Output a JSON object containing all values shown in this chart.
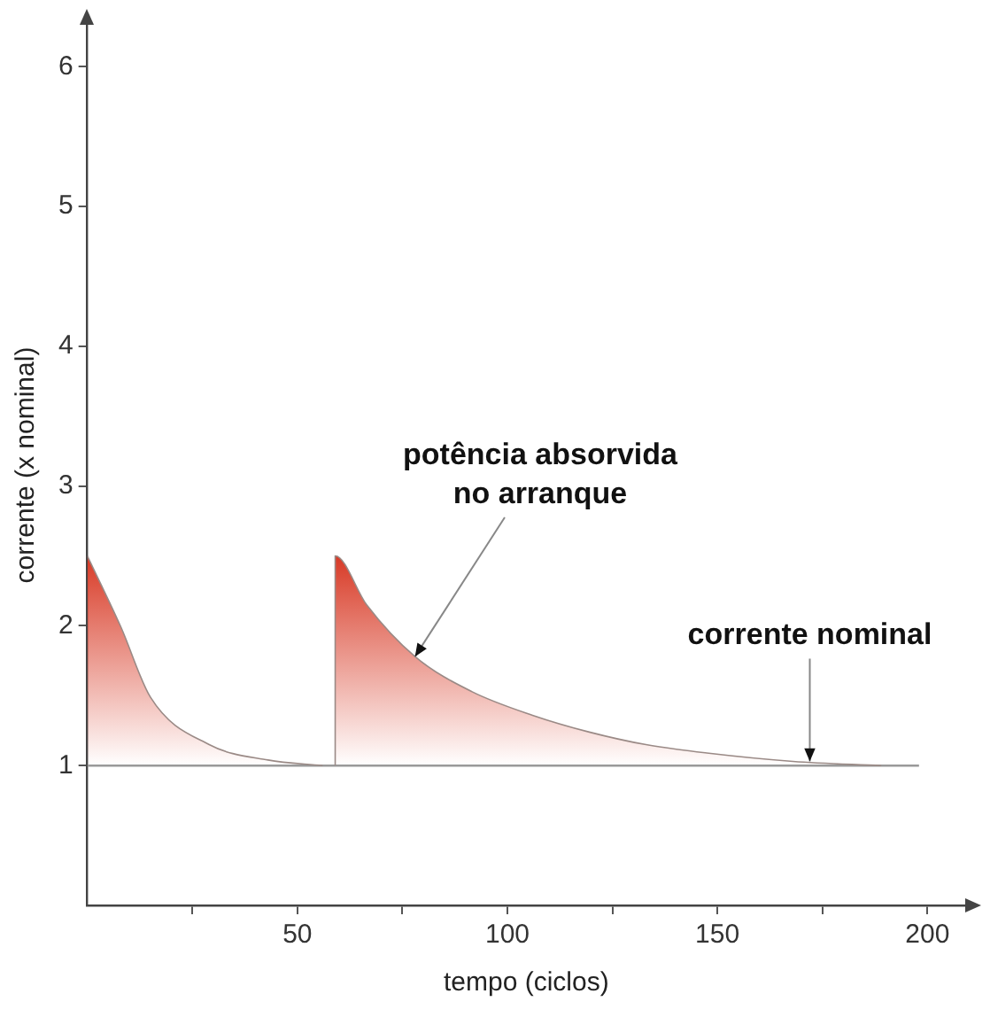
{
  "chart_data": {
    "type": "area",
    "xlabel": "tempo (ciclos)",
    "ylabel": "corrente (x nominal)",
    "series": [
      {
        "color": "#d83a26",
        "x": [
          0,
          8,
          15,
          29,
          43,
          56
        ],
        "values": [
          2.5,
          1.99,
          1.49,
          1.15,
          1.04,
          1.0
        ]
      },
      {
        "color": "#d83a26",
        "x": [
          59,
          59,
          66.5,
          78,
          91.5,
          106,
          119.5,
          133,
          147.5,
          168,
          189
        ],
        "values": [
          1.0,
          2.5,
          2.15,
          1.78,
          1.53,
          1.36,
          1.24,
          1.15,
          1.09,
          1.03,
          1.0
        ]
      },
      {
        "type": "line",
        "color": "#999999",
        "x": [
          0,
          198
        ],
        "values": [
          1,
          1
        ]
      }
    ],
    "xlim": [
      0,
      209
    ],
    "ylim": [
      0,
      6.3
    ],
    "xticks": [
      {
        "value": 25,
        "label": null
      },
      50,
      {
        "value": 75,
        "label": null
      },
      100,
      {
        "value": 125,
        "label": null
      },
      150,
      {
        "value": 175,
        "label": null
      },
      200
    ],
    "yticks": [
      1,
      2,
      3,
      4,
      5,
      6
    ],
    "annotations": [
      {
        "text": "potência absorvida\nno arranque",
        "x": 78,
        "y": 1.78
      },
      {
        "text": "corrente nominal",
        "x": 172,
        "y": 1.03
      }
    ],
    "grid": false,
    "legend": false,
    "marker": "none",
    "line_style": "solid"
  }
}
